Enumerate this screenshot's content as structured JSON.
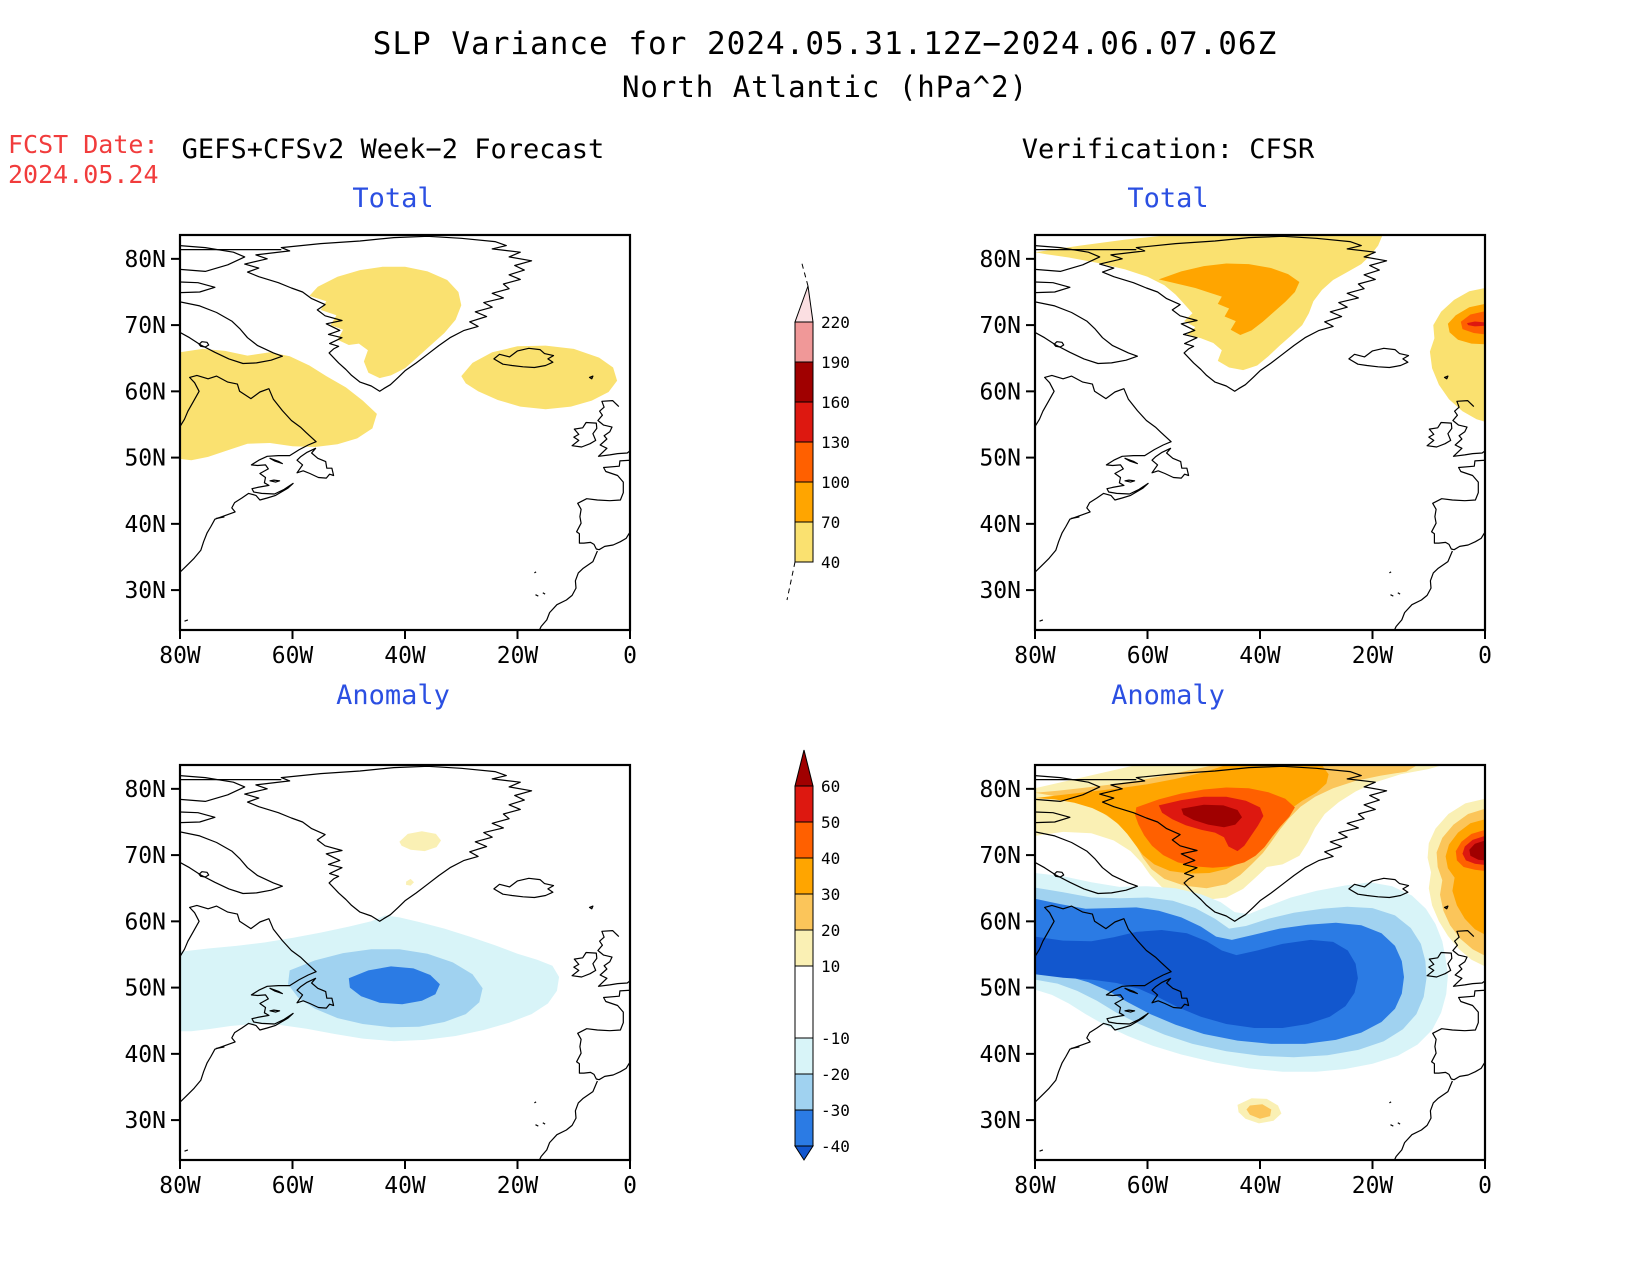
{
  "title": {
    "line1": "SLP Variance for 2024.05.31.12Z−2024.06.07.06Z",
    "line2": "North Atlantic (hPa^2)"
  },
  "forecast_info": {
    "label": "FCST Date:",
    "date": "2024.05.24",
    "color": "#f13c3c"
  },
  "columns": {
    "left_header": "GEFS+CFSv2 Week−2 Forecast",
    "right_header": "Verification: CFSR"
  },
  "panel_title_color": "#2b4fe2",
  "panels": [
    {
      "id": "forecast-total",
      "title": "Total"
    },
    {
      "id": "verification-total",
      "title": "Total"
    },
    {
      "id": "forecast-anomaly",
      "title": "Anomaly"
    },
    {
      "id": "verification-anomaly",
      "title": "Anomaly"
    }
  ],
  "axes": {
    "lat_ticks": [
      "80N",
      "70N",
      "60N",
      "50N",
      "40N",
      "30N"
    ],
    "lat_values": [
      80,
      70,
      60,
      50,
      40,
      30
    ],
    "lon_ticks": [
      "80W",
      "60W",
      "40W",
      "20W",
      "0"
    ],
    "lon_values": [
      -80,
      -60,
      -40,
      -20,
      0
    ]
  },
  "chart_data": {
    "type": "heatmap",
    "projection": "latlon",
    "lon_range": [
      -80,
      0
    ],
    "lat_range": [
      24,
      83.6
    ],
    "units": "hPa^2",
    "colorbar_total": {
      "levels": [
        40,
        70,
        100,
        130,
        160,
        190,
        220
      ],
      "colors": [
        "#fae170",
        "#ffa500",
        "#ff6000",
        "#dd1810",
        "#a00000",
        "#f09898"
      ],
      "over_color": "#fbdfe2"
    },
    "colorbar_anomaly": {
      "levels": [
        -40,
        -30,
        -20,
        -10,
        10,
        20,
        30,
        40,
        50,
        60
      ],
      "colors": [
        "#2b7be4",
        "#a0d2f0",
        "#d8f4f8",
        "#ffffff",
        "#faf0b4",
        "#fbc55a",
        "#ffa500",
        "#ff6000",
        "#dd1810"
      ],
      "under_color": "#1257ce",
      "over_color": "#a00000"
    },
    "panels": [
      {
        "id": "forecast-total",
        "summary": "Variance > 40 hPa^2 over central Greenland, the Labrador Sea sector (50-66N west of 44W), and around Iceland (57-67N)."
      },
      {
        "id": "verification-total",
        "summary": "Variance > 70 hPa^2 over northern Greenland with broad > 40 region; maximum > 130 hPa^2 near 70N just west of 0."
      },
      {
        "id": "forecast-anomaly",
        "summary": "Negative anomaly reaching -30 hPa^2 centered near 50N 42W; weak +10 hPa^2 spot over central Greenland (72N 37W)."
      },
      {
        "id": "verification-anomaly",
        "summary": "Positive anomaly > 50 hPa^2 over N Greenland (75-79N) and > 60 hPa^2 near 70N 2W; large negative anomaly below -40 hPa^2 centered 44-58N mid-basin; small +10 spot near 31N 40W."
      }
    ]
  }
}
